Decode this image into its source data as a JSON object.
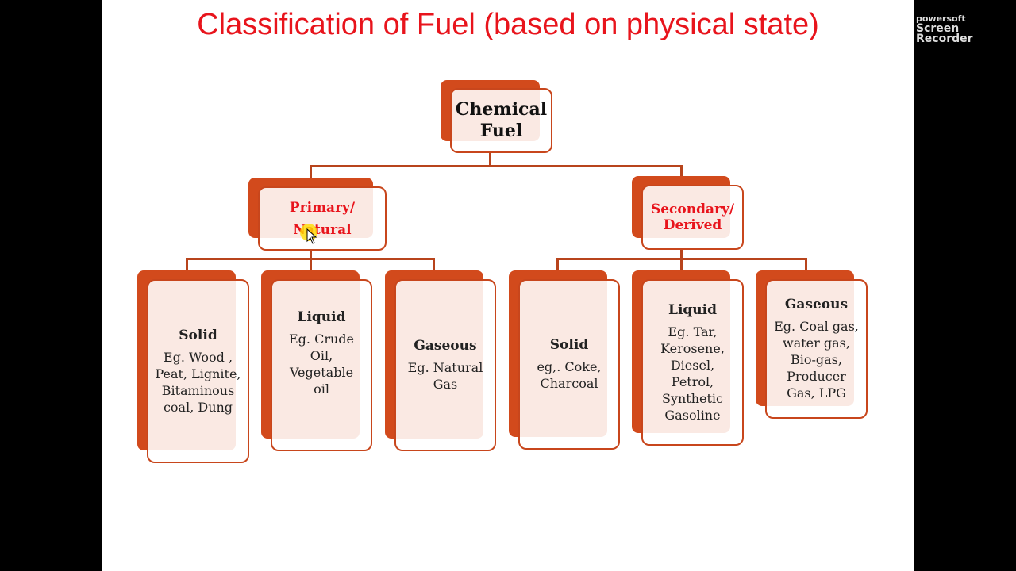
{
  "title": "Classification of Fuel (based on physical state)",
  "watermark": {
    "line1": "powersoft",
    "line2": "Screen Recorder"
  },
  "root": {
    "label": "Chemical Fuel"
  },
  "level1": [
    {
      "label": "Primary/ Natural"
    },
    {
      "label": "Secondary/ Derived"
    }
  ],
  "leaves": [
    {
      "title": "Solid",
      "text": "Eg. Wood , Peat, Lignite, Bitaminous coal, Dung"
    },
    {
      "title": "Liquid",
      "text": "Eg. Crude Oil, Vegetable oil"
    },
    {
      "title": "Gaseous",
      "text": "Eg. Natural Gas"
    },
    {
      "title": "Solid",
      "text": "eg,. Coke, Charcoal"
    },
    {
      "title": "Liquid",
      "text": "Eg. Tar, Kerosene, Diesel, Petrol, Synthetic Gasoline"
    },
    {
      "title": "Gaseous",
      "text": "Eg. Coal gas, water gas, Bio-gas, Producer Gas, LPG"
    }
  ],
  "colors": {
    "accent": "#d24a1c",
    "title": "#e8141c"
  }
}
